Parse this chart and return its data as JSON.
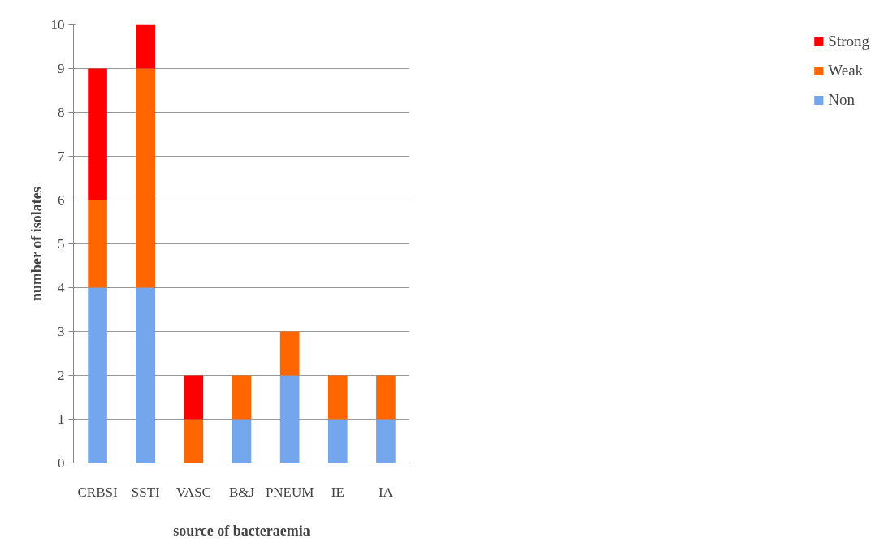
{
  "chart_data": {
    "type": "bar",
    "stacked": true,
    "xlabel": "source of bacteraemia",
    "ylabel": "number of isolates",
    "categories": [
      "CRBSI",
      "SSTI",
      "VASC",
      "B&J",
      "PNEUM",
      "IE",
      "IA"
    ],
    "series": [
      {
        "name": "Non",
        "color": "#74a6ee",
        "values": [
          4,
          4,
          0,
          1,
          2,
          1,
          1
        ]
      },
      {
        "name": "Weak",
        "color": "#ff6600",
        "values": [
          2,
          5,
          1,
          1,
          1,
          1,
          1
        ]
      },
      {
        "name": "Strong",
        "color": "#ff0000",
        "values": [
          3,
          1,
          1,
          0,
          0,
          0,
          0
        ]
      }
    ],
    "ylim": [
      0,
      10
    ],
    "yticks": [
      0,
      1,
      2,
      3,
      4,
      5,
      6,
      7,
      8,
      9,
      10
    ],
    "grid": "y",
    "legend": "right"
  }
}
